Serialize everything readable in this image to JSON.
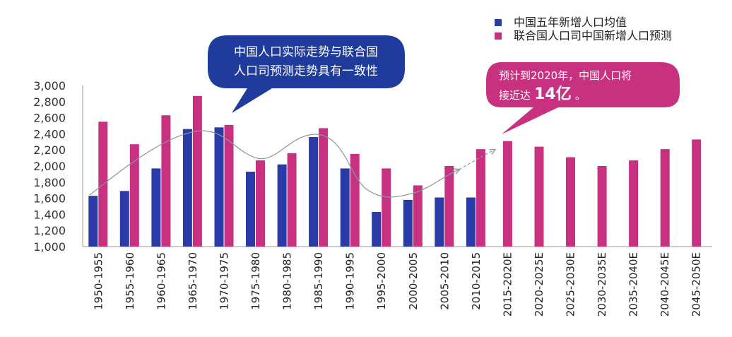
{
  "chart_data": {
    "type": "bar",
    "categories": [
      "1950-1955",
      "1955-1960",
      "1960-1965",
      "1965-1970",
      "1970-1975",
      "1975-1980",
      "1980-1985",
      "1985-1990",
      "1990-1995",
      "1995-2000",
      "2000-2005",
      "2005-2010",
      "2010-2015",
      "2015-2020E",
      "2020-2025E",
      "2025-2030E",
      "2030-2035E",
      "2035-2040E",
      "2040-2045E",
      "2045-2050E"
    ],
    "series": [
      {
        "name": "中国五年新增人口均值",
        "color": "#2a3aa6",
        "values": [
          1630,
          1690,
          1970,
          2460,
          2480,
          1930,
          2020,
          2360,
          1970,
          1430,
          1580,
          1610,
          1610,
          null,
          null,
          null,
          null,
          null,
          null,
          null
        ]
      },
      {
        "name": "联合国人口司中国新增人口预测",
        "color": "#c8317f",
        "values": [
          2550,
          2270,
          2630,
          2870,
          2510,
          2070,
          2160,
          2470,
          2150,
          1970,
          1760,
          2000,
          2210,
          2310,
          2240,
          2110,
          2000,
          2070,
          2210,
          2330
        ]
      }
    ],
    "yticks": [
      "1,000",
      "1,200",
      "1,400",
      "1,600",
      "1,800",
      "2,000",
      "2,200",
      "2,400",
      "2,600",
      "2,800",
      "3,000"
    ],
    "ylim": [
      1000,
      3000
    ],
    "legend_position": "top-right",
    "annotations": [
      {
        "id": "bubble1",
        "lines": [
          "中国人口实际走势与联合国",
          "人口司预测走势具有一致性"
        ],
        "color": "#1f3b9c"
      },
      {
        "id": "bubble2",
        "line1": "预计到2020年，中国人口将",
        "line2_prefix": "接近达",
        "line2_big": "14亿",
        "line2_suffix": "。",
        "color": "#c8317f"
      }
    ]
  }
}
